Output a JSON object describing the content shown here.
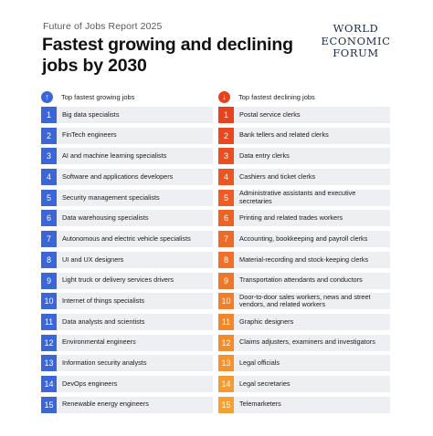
{
  "header": {
    "subtitle": "Future of Jobs Report 2025",
    "title": "Fastest growing and declining jobs by 2030",
    "logo": [
      "WORLD",
      "ECONOMIC",
      "FORUM"
    ]
  },
  "colors": {
    "growing": "#3a66d8",
    "declining": "#e8411e",
    "declining_light": "#f5892a",
    "row_bg": "#eeeff2"
  },
  "chart_data": {
    "type": "table",
    "columns": [
      {
        "heading": "Top fastest growing jobs",
        "ranks": [
          "1",
          "2",
          "3",
          "4",
          "5",
          "6",
          "7",
          "8",
          "9",
          "10",
          "11",
          "12",
          "13",
          "14",
          "15"
        ],
        "items": [
          "Big data specialists",
          "FinTech engineers",
          "AI and machine learning specialists",
          "Software and applications developers",
          "Security management specialists",
          "Data warehousing specialists",
          "Autonomous and electric vehicle specialists",
          "UI and UX designers",
          "Light truck or delivery services drivers",
          "Internet of things specialists",
          "Data analysts and scientists",
          "Environmental engineers",
          "Information security analysts",
          "DevOps engineers",
          "Renewable energy engineers"
        ]
      },
      {
        "heading": "Top fastest declining jobs",
        "ranks": [
          "1",
          "2",
          "3",
          "4",
          "5",
          "6",
          "7",
          "8",
          "9",
          "10",
          "11",
          "12",
          "13",
          "14",
          "15"
        ],
        "items": [
          "Postal service clerks",
          "Bank tellers and related clerks",
          "Data entry clerks",
          "Cashiers and ticket clerks",
          "Administrative assistants and executive secretaries",
          "Printing and related trades workers",
          "Accounting, bookkeeping and payroll clerks",
          "Material-recording and stock-keeping clerks",
          "Transportation attendants and conductors",
          "Door-to-door sales workers, news and street vendors, and related workers",
          "Graphic designers",
          "Claims adjusters, examiners and investigators",
          "Legal officials",
          "Legal secretaries",
          "Telemarketers"
        ]
      }
    ]
  }
}
